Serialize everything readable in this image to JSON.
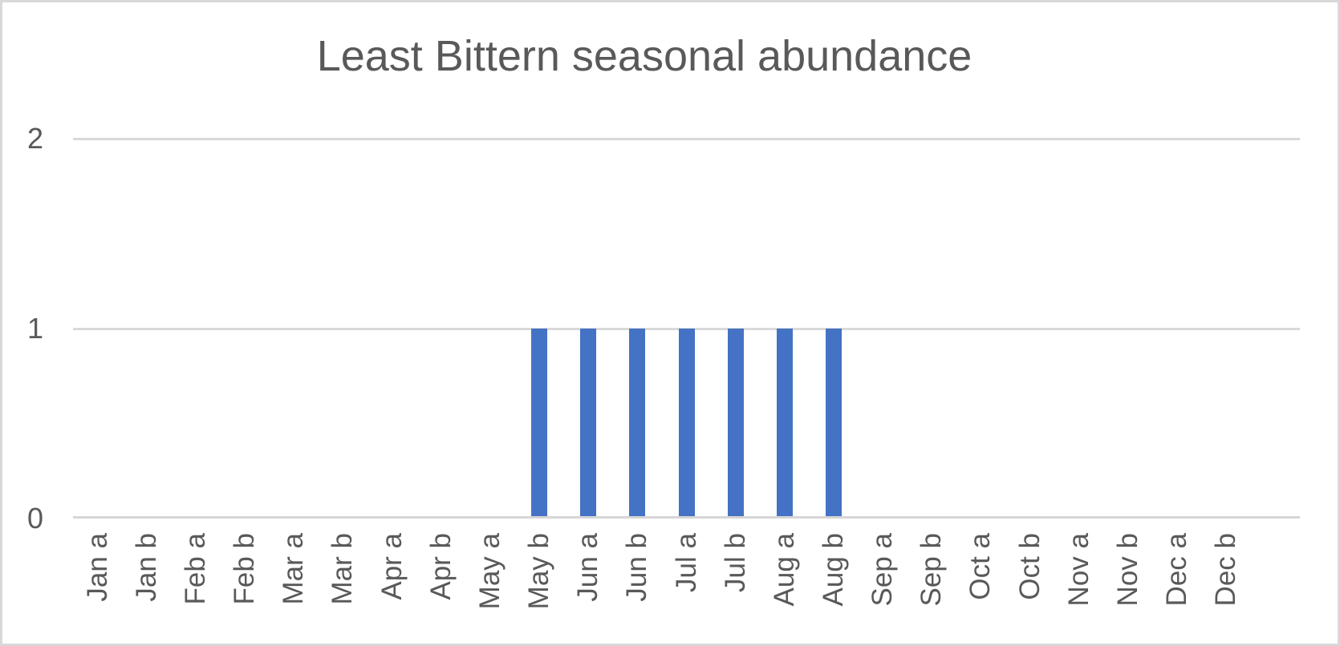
{
  "chart": {
    "title": "Least Bittern seasonal abundance",
    "colors": {
      "bar": "#4472C4",
      "gridline": "#d9d9d9",
      "axis_line": "#d6d6d6",
      "text": "#595959",
      "border": "#d8d8d8",
      "background": "#ffffff"
    }
  },
  "chart_data": {
    "type": "bar",
    "title": "Least Bittern seasonal abundance",
    "categories": [
      "Jan a",
      "Jan b",
      "Feb a",
      "Feb b",
      "Mar a",
      "Mar b",
      "Apr a",
      "Apr b",
      "May a",
      "May b",
      "Jun a",
      "Jun b",
      "Jul a",
      "Jul b",
      "Aug a",
      "Aug b",
      "Sep a",
      "Sep b",
      "Oct a",
      "Oct b",
      "Nov a",
      "Nov b",
      "Dec a",
      "Dec b"
    ],
    "values": [
      0,
      0,
      0,
      0,
      0,
      0,
      0,
      0,
      0,
      1,
      1,
      1,
      1,
      1,
      1,
      1,
      0,
      0,
      0,
      0,
      0,
      0,
      0,
      0
    ],
    "xlabel": "",
    "ylabel": "",
    "ylim": [
      0,
      2
    ],
    "yticks": [
      0,
      1,
      2
    ],
    "grid": true,
    "legend_position": "none",
    "x_tick_rotation_deg": -90,
    "total_slots": 25,
    "bar_color": "#4472C4"
  }
}
